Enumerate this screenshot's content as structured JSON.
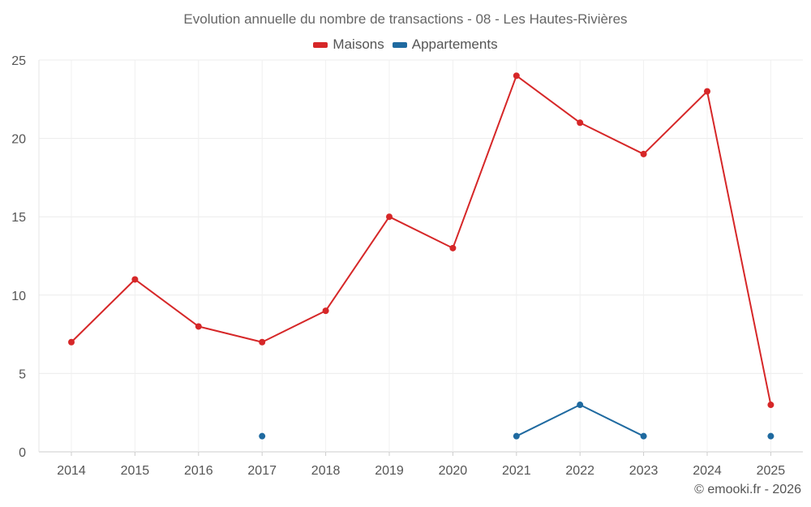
{
  "chart_data": {
    "type": "line",
    "title": "Evolution annuelle du nombre de transactions - 08 - Les Hautes-Rivières",
    "categories": [
      "2014",
      "2015",
      "2016",
      "2017",
      "2018",
      "2019",
      "2020",
      "2021",
      "2022",
      "2023",
      "2024",
      "2025"
    ],
    "ylim": [
      0,
      25
    ],
    "yticks": [
      0,
      5,
      10,
      15,
      20,
      25
    ],
    "grid": true,
    "legend_position": "top-center",
    "series": [
      {
        "name": "Maisons",
        "color": "#d62728",
        "values": [
          7,
          11,
          8,
          7,
          9,
          15,
          13,
          24,
          21,
          19,
          23,
          3
        ]
      },
      {
        "name": "Appartements",
        "color": "#1f6aa0",
        "values": [
          null,
          null,
          null,
          1,
          null,
          null,
          null,
          1,
          3,
          1,
          null,
          1
        ]
      }
    ]
  },
  "credit": "© emooki.fr - 2026"
}
